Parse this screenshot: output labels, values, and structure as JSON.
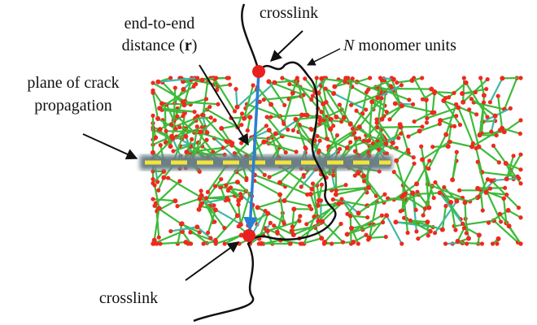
{
  "labels": {
    "top_crosslink": "crosslink",
    "end_to_end": {
      "line1": "end-to-end",
      "line2_prefix": "distance (",
      "vector": "r",
      "line2_suffix": ")"
    },
    "monomer": {
      "symbol": "N",
      "text": "monomer units"
    },
    "crack_plane": {
      "line1": "plane of crack",
      "line2": "propagation"
    },
    "bottom_crosslink": "crosslink"
  }
}
